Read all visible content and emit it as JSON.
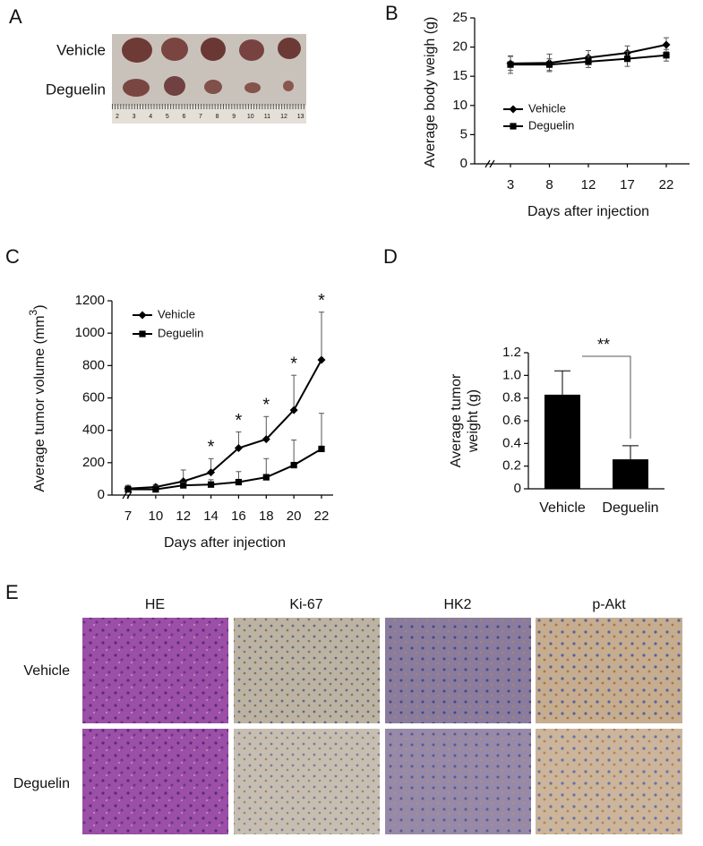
{
  "panel_labels": [
    "A",
    "B",
    "C",
    "D",
    "E"
  ],
  "photo_a": {
    "rows": [
      "Vehicle",
      "Deguelin"
    ],
    "ruler": [
      "2",
      "3",
      "4",
      "5",
      "6",
      "7",
      "8",
      "9",
      "10",
      "11",
      "12",
      "13"
    ]
  },
  "photo_e": {
    "columns": [
      "HE",
      "Ki-67",
      "HK2",
      "p-Akt"
    ],
    "rows": [
      "Vehicle",
      "Deguelin"
    ]
  },
  "chart_data": [
    {
      "type": "line",
      "ylabel": [
        "Average body weigh (g)"
      ],
      "xlabel": "Days after injection",
      "categories": [
        "3",
        "8",
        "12",
        "17",
        "22"
      ],
      "ylim": [
        0,
        25
      ],
      "yticks": [
        0,
        5,
        10,
        15,
        20,
        25
      ],
      "error_bars": "both",
      "series": [
        {
          "name": "Vehicle",
          "color": "#000000",
          "marker": "diamond",
          "values": [
            17.2,
            17.3,
            18.2,
            19.0,
            20.4
          ],
          "errors": [
            1.2,
            1.5,
            1.2,
            1.2,
            1.2
          ]
        },
        {
          "name": "Deguelin",
          "color": "#000000",
          "marker": "square",
          "values": [
            17.0,
            17.0,
            17.5,
            18.0,
            18.6
          ],
          "errors": [
            1.5,
            1.0,
            1.0,
            1.3,
            1.0
          ]
        }
      ]
    },
    {
      "type": "line",
      "ylabel": [
        "Average tumor volume (mm",
        "3",
        ")"
      ],
      "xlabel": "Days after injection",
      "categories": [
        "7",
        "10",
        "12",
        "14",
        "16",
        "18",
        "20",
        "22"
      ],
      "ylim": [
        0,
        1200
      ],
      "yticks": [
        0,
        200,
        400,
        600,
        800,
        1000,
        1200
      ],
      "error_bars": "up",
      "annotations": [
        "*",
        "*",
        "*",
        "*",
        "*"
      ],
      "series": [
        {
          "name": "Vehicle",
          "color": "#000000",
          "marker": "diamond",
          "values": [
            40,
            50,
            85,
            140,
            290,
            345,
            525,
            835
          ],
          "errors": [
            20,
            15,
            70,
            85,
            100,
            140,
            215,
            295
          ]
        },
        {
          "name": "Deguelin",
          "color": "#000000",
          "marker": "square",
          "values": [
            35,
            35,
            60,
            65,
            80,
            110,
            185,
            285
          ],
          "errors": [
            20,
            20,
            20,
            30,
            65,
            115,
            155,
            220
          ]
        }
      ]
    },
    {
      "type": "bar",
      "ylabel": [
        "Average tumor",
        "weight (g)"
      ],
      "color": "#000000",
      "categories": [
        "Vehicle",
        "Deguelin"
      ],
      "values": [
        0.83,
        0.26
      ],
      "errors": [
        0.21,
        0.12
      ],
      "ylim": [
        0,
        1.2
      ],
      "yticks": [
        0,
        0.2,
        0.4,
        0.6,
        0.8,
        {
          "value": 1,
          "label": "1.0"
        },
        1.2
      ],
      "annotations": [
        "**"
      ]
    }
  ]
}
